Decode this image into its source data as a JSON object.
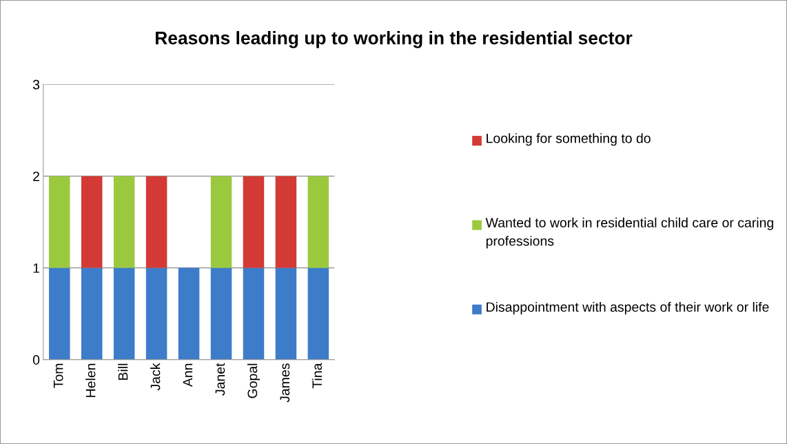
{
  "chart_data": {
    "type": "bar",
    "stacked": true,
    "title": "Reasons leading up to working in the residential sector",
    "categories": [
      "Tom",
      "Helen",
      "Bill",
      "Jack",
      "Ann",
      "Janet",
      "Gopal",
      "James",
      "Tina"
    ],
    "series": [
      {
        "name": "Disappointment with aspects of their work or life",
        "color": "#3d7cc9",
        "values": [
          1,
          1,
          1,
          1,
          1,
          1,
          1,
          1,
          1
        ]
      },
      {
        "name": "Wanted to work in residential child care or caring professions",
        "color": "#9bc93e",
        "values": [
          1,
          null,
          1,
          null,
          null,
          1,
          null,
          null,
          1
        ]
      },
      {
        "name": "Looking for something to do",
        "color": "#d33a35",
        "values": [
          null,
          1,
          null,
          1,
          null,
          null,
          1,
          1,
          null
        ]
      }
    ],
    "ylim": [
      0,
      3
    ],
    "yticks": [
      0,
      1,
      2,
      3
    ],
    "grid": "y",
    "legend": "right"
  }
}
